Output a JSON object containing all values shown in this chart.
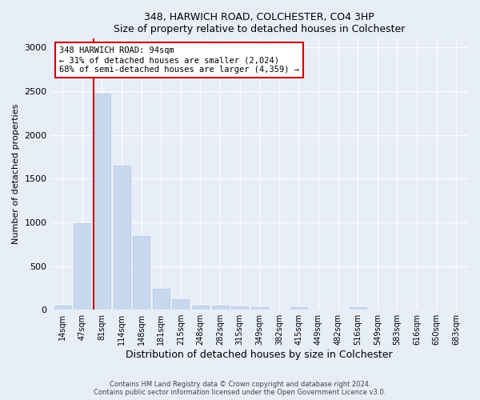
{
  "title1": "348, HARWICH ROAD, COLCHESTER, CO4 3HP",
  "title2": "Size of property relative to detached houses in Colchester",
  "xlabel": "Distribution of detached houses by size in Colchester",
  "ylabel": "Number of detached properties",
  "categories": [
    "14sqm",
    "47sqm",
    "81sqm",
    "114sqm",
    "148sqm",
    "181sqm",
    "215sqm",
    "248sqm",
    "282sqm",
    "315sqm",
    "349sqm",
    "382sqm",
    "415sqm",
    "449sqm",
    "482sqm",
    "516sqm",
    "549sqm",
    "583sqm",
    "616sqm",
    "650sqm",
    "683sqm"
  ],
  "values": [
    50,
    990,
    2470,
    1650,
    840,
    240,
    120,
    50,
    50,
    40,
    30,
    0,
    30,
    0,
    0,
    25,
    0,
    0,
    0,
    0,
    0
  ],
  "bar_color": "#c8d9ef",
  "bar_edge_color": "#b0c4de",
  "vline_color": "#cc0000",
  "annotation_text": "348 HARWICH ROAD: 94sqm\n← 31% of detached houses are smaller (2,024)\n68% of semi-detached houses are larger (4,359) →",
  "annotation_box_color": "#ffffff",
  "annotation_border_color": "#cc0000",
  "ylim": [
    0,
    3100
  ],
  "yticks": [
    0,
    500,
    1000,
    1500,
    2000,
    2500,
    3000
  ],
  "background_color": "#e8eef8",
  "plot_bg_color": "#e8eef8",
  "footer1": "Contains HM Land Registry data © Crown copyright and database right 2024.",
  "footer2": "Contains public sector information licensed under the Open Government Licence v3.0."
}
